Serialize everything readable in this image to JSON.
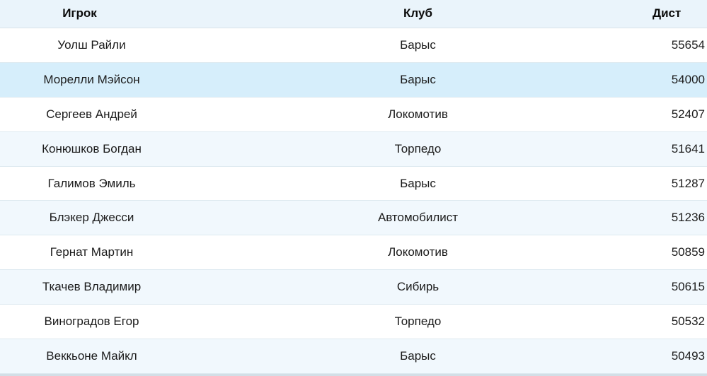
{
  "table": {
    "columns": [
      {
        "key": "player",
        "label": "Игрок"
      },
      {
        "key": "club",
        "label": "Клуб"
      },
      {
        "key": "dist",
        "label": "Дист"
      }
    ],
    "rows": [
      {
        "player": "Уолш Райли",
        "club": "Барыс",
        "dist": "55654",
        "highlighted": false
      },
      {
        "player": "Морелли Мэйсон",
        "club": "Барыс",
        "dist": "54000",
        "highlighted": true
      },
      {
        "player": "Сергеев Андрей",
        "club": "Локомотив",
        "dist": "52407",
        "highlighted": false
      },
      {
        "player": "Конюшков Богдан",
        "club": "Торпедо",
        "dist": "51641",
        "highlighted": false
      },
      {
        "player": "Галимов Эмиль",
        "club": "Барыс",
        "dist": "51287",
        "highlighted": false
      },
      {
        "player": "Блэкер Джесси",
        "club": "Автомобилист",
        "dist": "51236",
        "highlighted": false
      },
      {
        "player": "Гернат Мартин",
        "club": "Локомотив",
        "dist": "50859",
        "highlighted": false
      },
      {
        "player": "Ткачев Владимир",
        "club": "Сибирь",
        "dist": "50615",
        "highlighted": false
      },
      {
        "player": "Виноградов Егор",
        "club": "Торпедо",
        "dist": "50532",
        "highlighted": false
      },
      {
        "player": "Веккьоне Майкл",
        "club": "Барыс",
        "dist": "50493",
        "highlighted": false
      }
    ]
  },
  "colors": {
    "header_bg": "#eaf4fb",
    "row_stripe": "#f1f8fd",
    "row_highlight": "#d6eefb",
    "row_separator": "#dde9f0",
    "bottom_bar": "#d3dee6",
    "text": "#1b1b1b"
  }
}
